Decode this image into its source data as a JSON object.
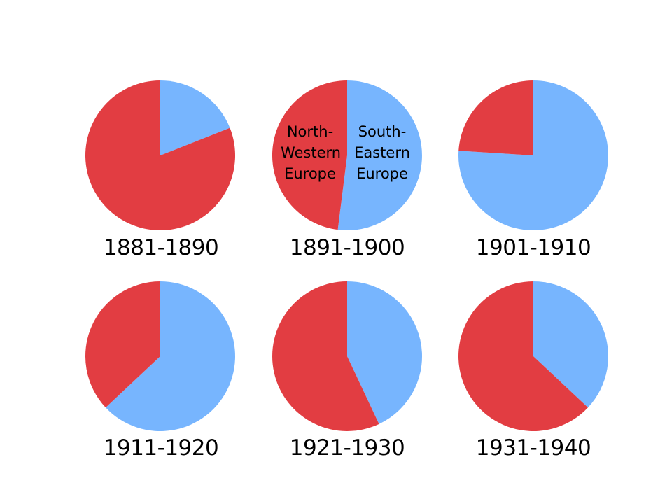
{
  "chart_data": [
    {
      "type": "pie",
      "title": "1881-1890",
      "slices": [
        {
          "name": "South-Eastern Europe",
          "value": 19,
          "color": "#77b5fe"
        },
        {
          "name": "North-Western Europe",
          "value": 81,
          "color": "#e23d42"
        }
      ]
    },
    {
      "type": "pie",
      "title": "1891-1900",
      "slices": [
        {
          "name": "South-Eastern Europe",
          "value": 52,
          "color": "#77b5fe"
        },
        {
          "name": "North-Western Europe",
          "value": 48,
          "color": "#e23d42"
        }
      ],
      "slice_labels": {
        "south_eastern": [
          "South-",
          "Eastern",
          "Europe"
        ],
        "north_western": [
          "North-",
          "Western",
          "Europe"
        ]
      }
    },
    {
      "type": "pie",
      "title": "1901-1910",
      "slices": [
        {
          "name": "South-Eastern Europe",
          "value": 76,
          "color": "#77b5fe"
        },
        {
          "name": "North-Western Europe",
          "value": 24,
          "color": "#e23d42"
        }
      ]
    },
    {
      "type": "pie",
      "title": "1911-1920",
      "slices": [
        {
          "name": "South-Eastern Europe",
          "value": 63,
          "color": "#77b5fe"
        },
        {
          "name": "North-Western Europe",
          "value": 37,
          "color": "#e23d42"
        }
      ]
    },
    {
      "type": "pie",
      "title": "1921-1930",
      "slices": [
        {
          "name": "South-Eastern Europe",
          "value": 43,
          "color": "#77b5fe"
        },
        {
          "name": "North-Western Europe",
          "value": 57,
          "color": "#e23d42"
        }
      ]
    },
    {
      "type": "pie",
      "title": "1931-1940",
      "slices": [
        {
          "name": "South-Eastern Europe",
          "value": 37,
          "color": "#77b5fe"
        },
        {
          "name": "North-Western Europe",
          "value": 63,
          "color": "#e23d42"
        }
      ]
    }
  ]
}
